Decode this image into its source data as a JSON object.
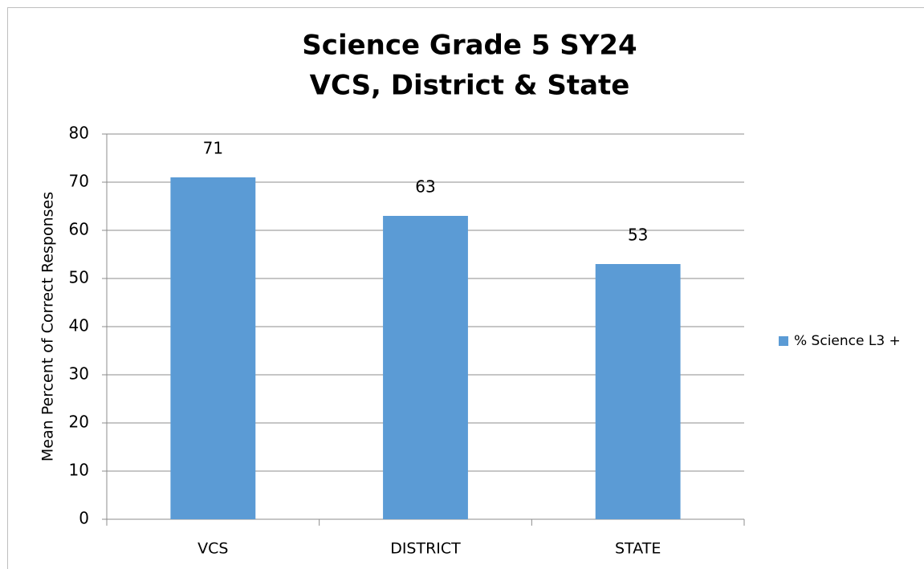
{
  "chart_data": {
    "type": "bar",
    "title": "Science Grade 5 SY24",
    "subtitle": "VCS, District & State",
    "y_label": "Mean Percent of Correct Responses",
    "categories": [
      "VCS",
      "DISTRICT",
      "STATE"
    ],
    "series": [
      {
        "name": "% Science L3 +",
        "color": "#5b9bd5",
        "values": [
          71,
          63,
          53
        ]
      }
    ],
    "ylim": [
      0,
      80
    ],
    "yticks": [
      0,
      10,
      20,
      30,
      40,
      50,
      60,
      70,
      80
    ],
    "grid": true,
    "legend": "right"
  }
}
